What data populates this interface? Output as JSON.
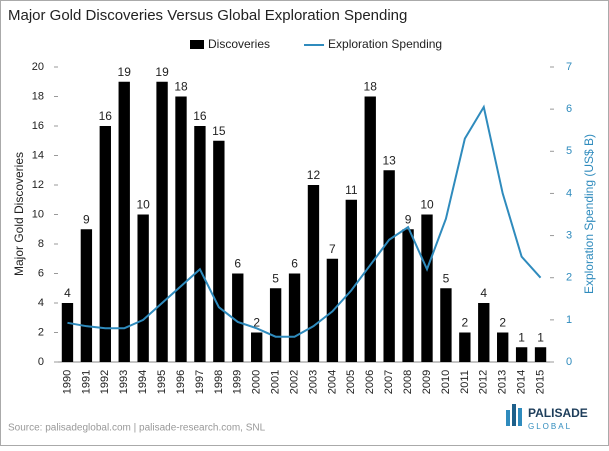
{
  "chart_data": {
    "type": "bar-line",
    "title": "Major Gold Discoveries Versus Global Exploration Spending",
    "y_label": "Major Gold Discoveries",
    "y2_label": "Exploration Spending (US$ B)",
    "source": "Source: palisadeglobal.com | palisade-research.com, SNL",
    "logo": {
      "name": "PALISADE",
      "sub": "GLOBAL"
    },
    "categories": [
      "1990",
      "1991",
      "1992",
      "1993",
      "1994",
      "1995",
      "1996",
      "1997",
      "1998",
      "1999",
      "2000",
      "2001",
      "2002",
      "2003",
      "2004",
      "2005",
      "2006",
      "2007",
      "2008",
      "2009",
      "2010",
      "2011",
      "2012",
      "2013",
      "2014",
      "2015"
    ],
    "series": [
      {
        "name": "Discoveries",
        "kind": "bar",
        "color": "#000000",
        "values": [
          4,
          9,
          16,
          19,
          10,
          19,
          18,
          16,
          15,
          6,
          2,
          5,
          6,
          12,
          7,
          11,
          18,
          13,
          9,
          10,
          5,
          2,
          4,
          2,
          1,
          1
        ]
      },
      {
        "name": "Exploration Spending",
        "kind": "line",
        "axis": "y2",
        "color": "#2f8bbd",
        "values": [
          0.93,
          0.85,
          0.8,
          0.8,
          1.0,
          1.4,
          1.8,
          2.2,
          1.3,
          0.95,
          0.8,
          0.6,
          0.6,
          0.85,
          1.2,
          1.7,
          2.3,
          2.9,
          3.2,
          2.2,
          3.4,
          5.3,
          6.05,
          4.0,
          2.5,
          2.0
        ]
      }
    ],
    "ylim": [
      0,
      20
    ],
    "yticks": [
      0,
      2,
      4,
      6,
      8,
      10,
      12,
      14,
      16,
      18,
      20
    ],
    "y2lim": [
      0,
      7
    ],
    "y2ticks": [
      0,
      1,
      2,
      3,
      4,
      5,
      6,
      7
    ],
    "legend": "top"
  }
}
